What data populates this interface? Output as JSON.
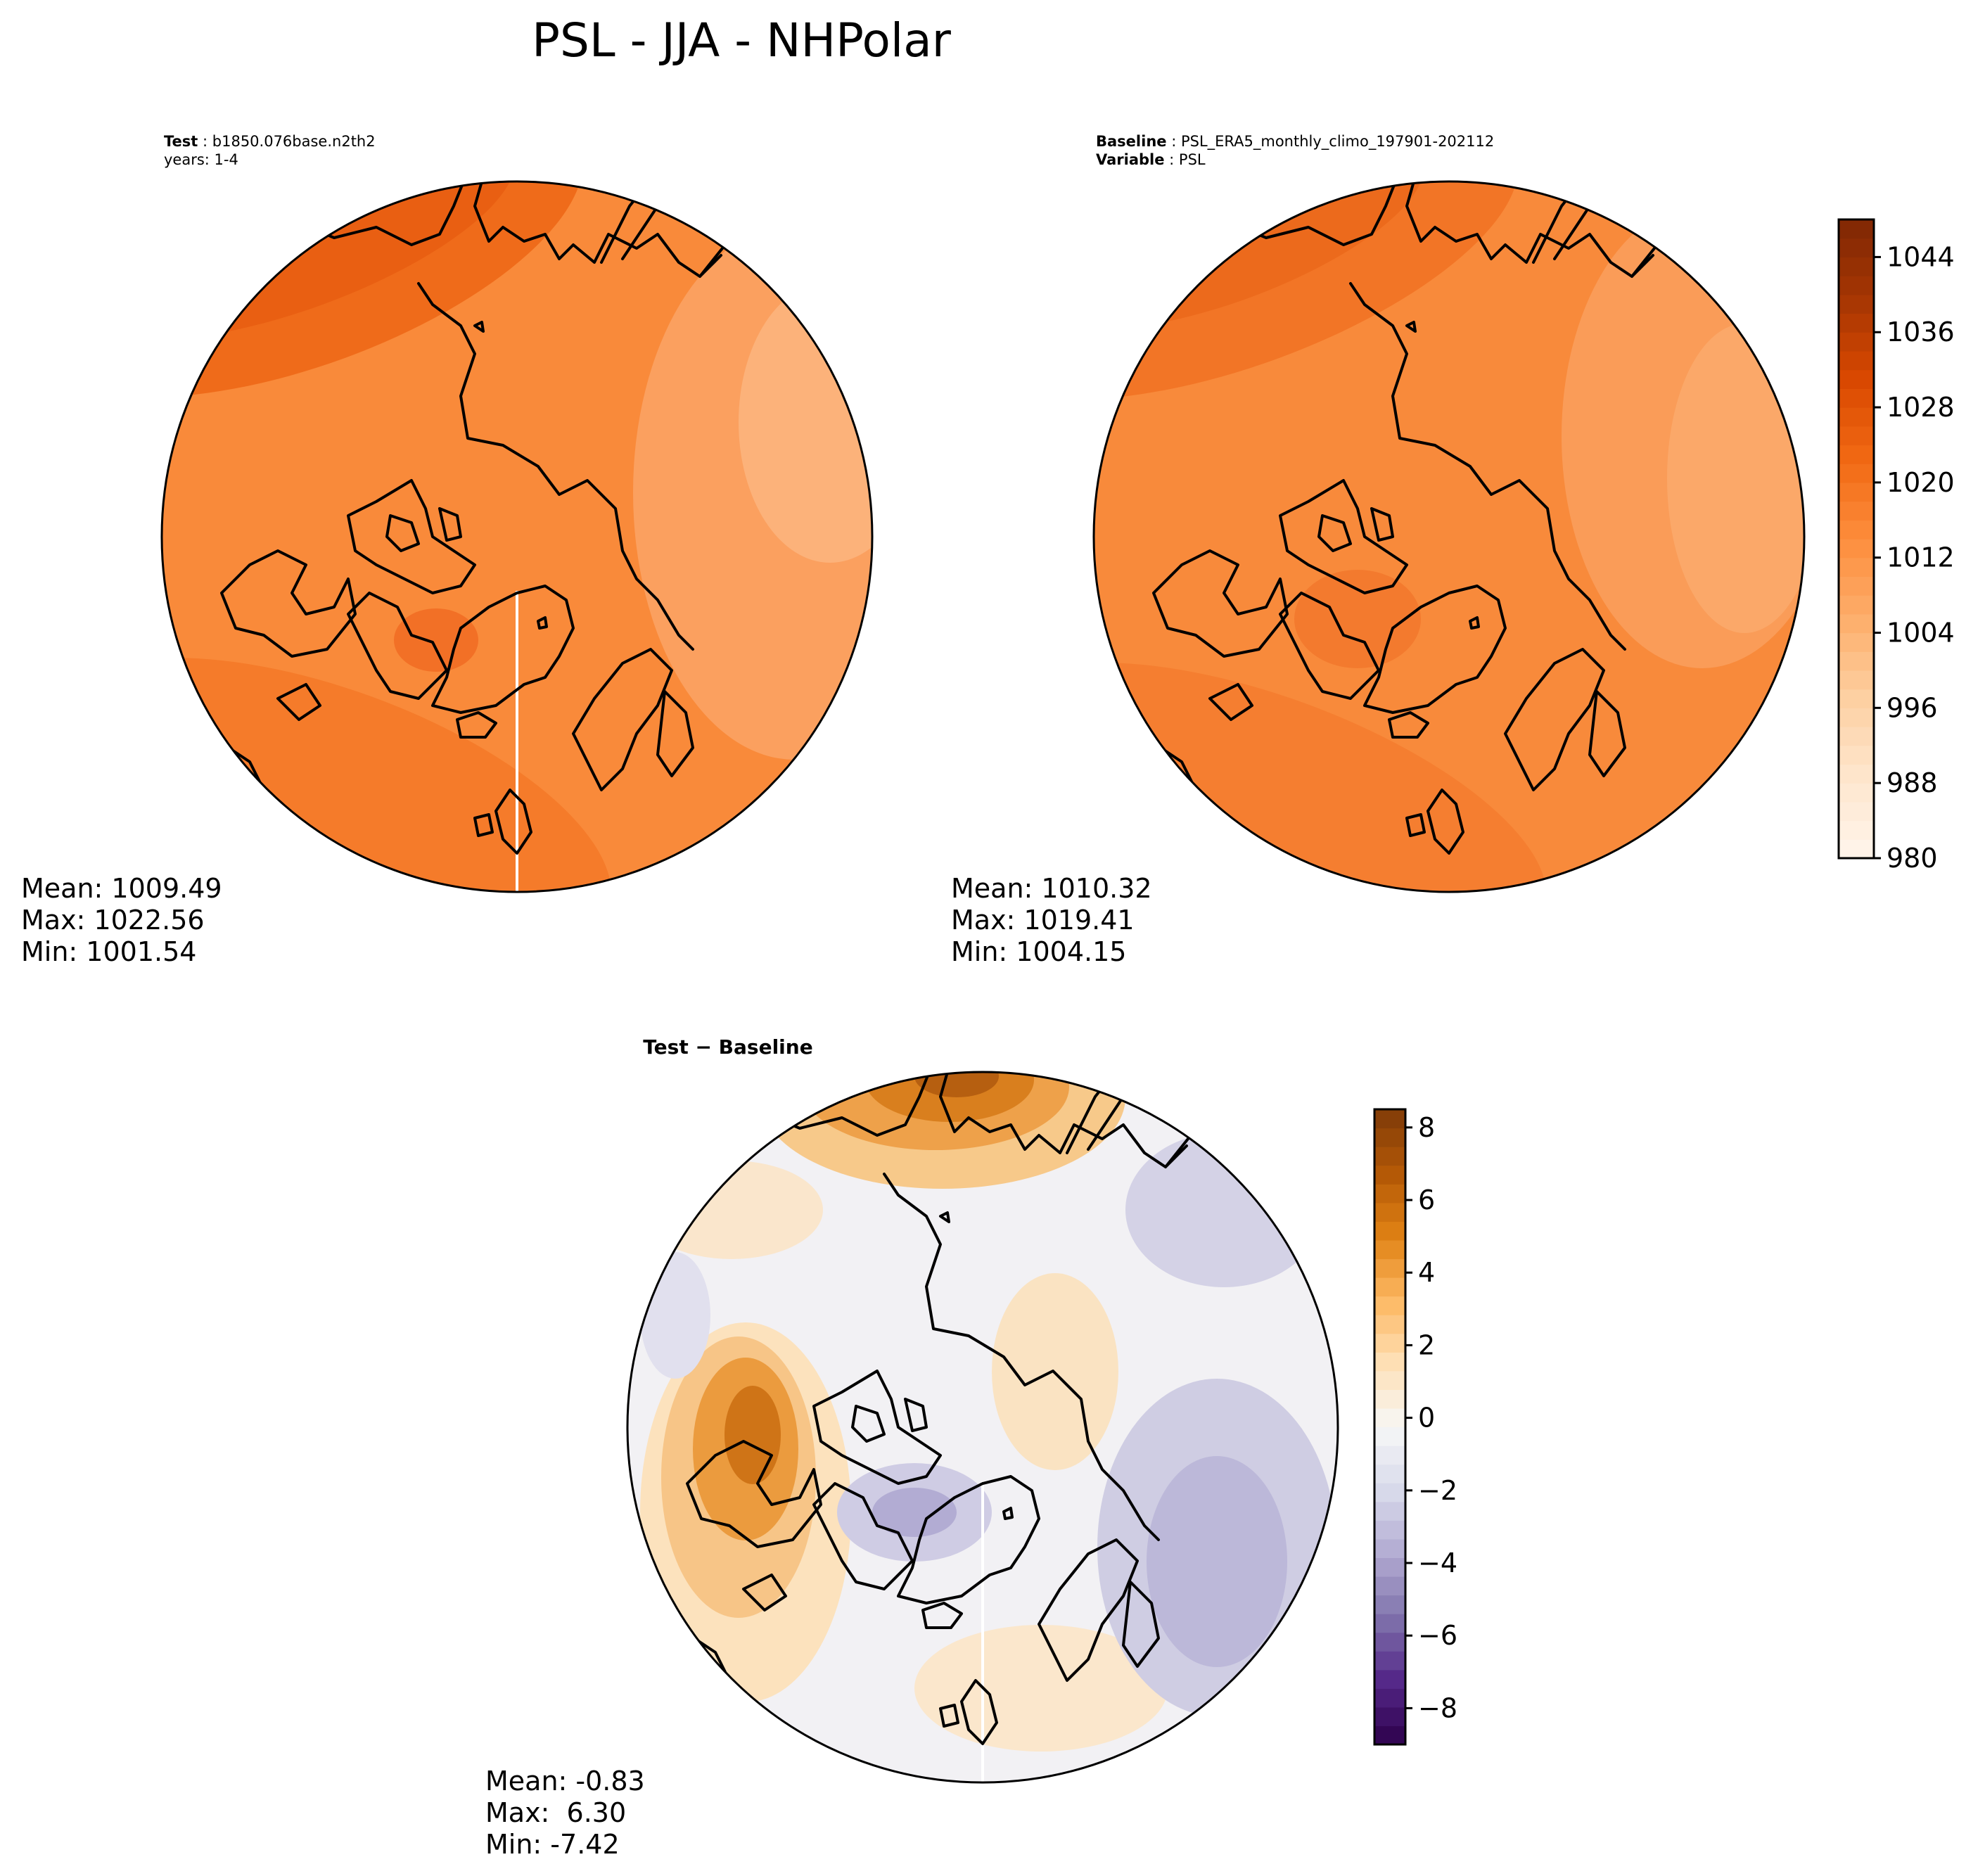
{
  "title": "PSL - JJA - NHPolar",
  "panels": [
    {
      "heading_bold": "Test",
      "heading_value": "b1850.076base.n2th2",
      "heading_line2": "years: 1-4",
      "stats": [
        "Mean: 1009.49",
        "Max: 1022.56",
        "Min: 1001.54"
      ]
    },
    {
      "heading_bold": "Baseline",
      "heading_value": "PSL_ERA5_monthly_climo_197901-202112",
      "heading_bold2": "Variable",
      "heading_value2": "PSL",
      "stats": [
        "Mean: 1010.32",
        "Max: 1019.41",
        "Min: 1004.15"
      ]
    },
    {
      "heading": "Test − Baseline",
      "stats": [
        "Mean: -0.83",
        "Max:  6.30",
        "Min: -7.42"
      ]
    }
  ],
  "colorbars": {
    "absolute": {
      "ticks": [
        "980",
        "988",
        "996",
        "1004",
        "1012",
        "1020",
        "1028",
        "1036",
        "1044"
      ],
      "range": [
        980,
        1048
      ],
      "colormap": "Oranges",
      "colors": [
        "#fff5eb",
        "#fee6ce",
        "#fdd0a2",
        "#fdae6b",
        "#fd8d3c",
        "#f16913",
        "#d94801",
        "#a63603",
        "#7f2704"
      ]
    },
    "difference": {
      "ticks": [
        "−8",
        "−6",
        "−4",
        "−2",
        "0",
        "2",
        "4",
        "6",
        "8"
      ],
      "range": [
        -9,
        8.5
      ],
      "colormap": "PuOr_r",
      "colors": [
        "#2d004b",
        "#542788",
        "#8073ac",
        "#b2abd2",
        "#d8daeb",
        "#f7f7f7",
        "#fee0b6",
        "#fdb863",
        "#e08214",
        "#b35806",
        "#7f3b08"
      ]
    }
  },
  "map_colors": {
    "test_base": "#f98a3a",
    "baseline_base": "#f88a3b",
    "diff_base": "#f2f1f4"
  }
}
